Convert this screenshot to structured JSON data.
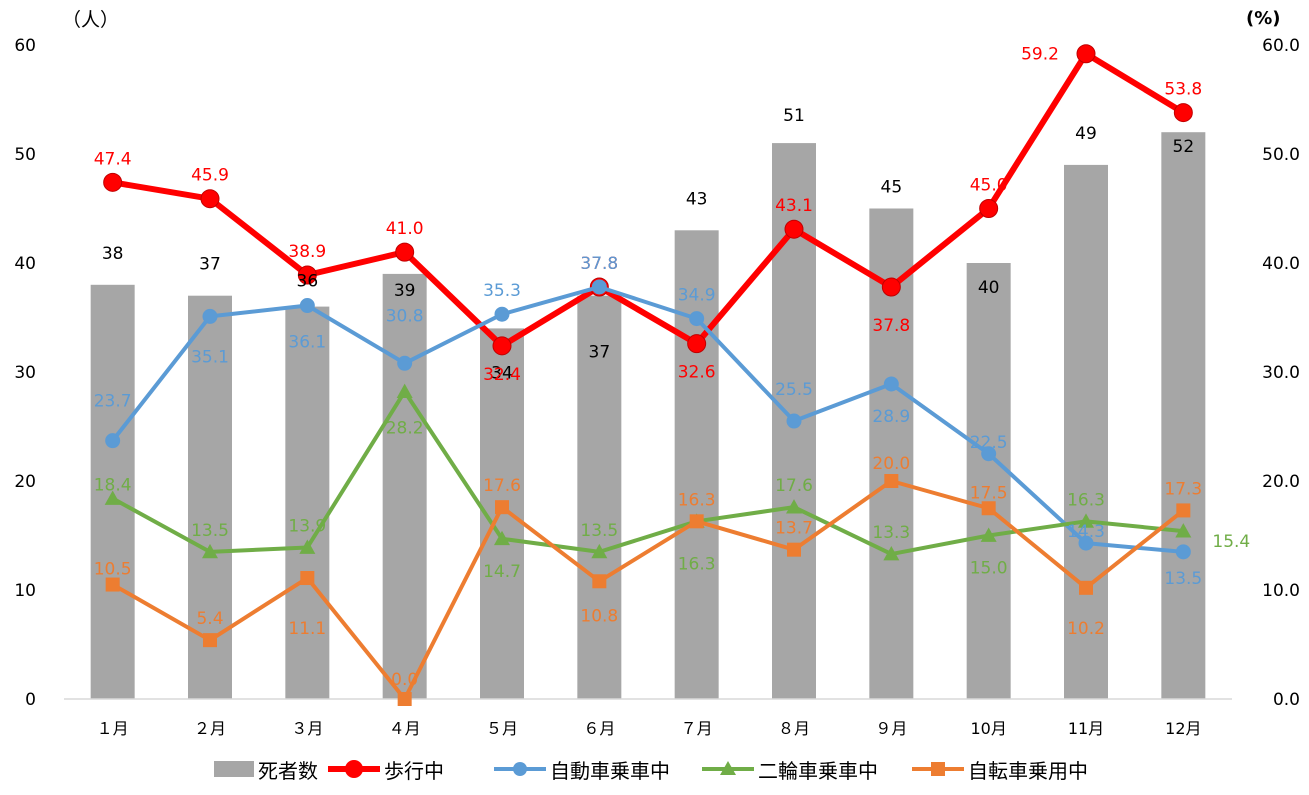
{
  "chart_data": {
    "type": "bar+line",
    "categories": [
      "１月",
      "２月",
      "３月",
      "４月",
      "５月",
      "６月",
      "７月",
      "８月",
      "９月",
      "10月",
      "11月",
      "12月"
    ],
    "left_axis": {
      "unit_label": "（人）",
      "min": 0,
      "max": 60,
      "ticks": [
        "0",
        "10",
        "20",
        "30",
        "40",
        "50",
        "60"
      ]
    },
    "right_axis": {
      "unit_label": "(%)",
      "min": 0,
      "max": 60,
      "ticks": [
        "0.0",
        "10.0",
        "20.0",
        "30.0",
        "40.0",
        "50.0",
        "60.0"
      ]
    },
    "bars": {
      "name": "死者数",
      "color": "#a6a6a6",
      "axis": "left",
      "values": [
        38,
        37,
        36,
        39,
        34,
        37,
        43,
        51,
        45,
        40,
        49,
        52
      ]
    },
    "series": [
      {
        "name": "歩行中",
        "color": "#ff0000",
        "marker": "circle",
        "axis": "right",
        "values": [
          47.4,
          45.9,
          38.9,
          41.0,
          32.4,
          37.8,
          32.6,
          43.1,
          37.8,
          45.0,
          59.2,
          53.8
        ]
      },
      {
        "name": "自動車乗車中",
        "color": "#5b9bd5",
        "marker": "circle",
        "axis": "right",
        "values": [
          23.7,
          35.1,
          36.1,
          30.8,
          35.3,
          37.8,
          34.9,
          25.5,
          28.9,
          22.5,
          14.3,
          13.5
        ]
      },
      {
        "name": "二輪車乗車中",
        "color": "#70ad47",
        "marker": "triangle",
        "axis": "right",
        "values": [
          18.4,
          13.5,
          13.9,
          28.2,
          14.7,
          13.5,
          16.3,
          17.6,
          13.3,
          15.0,
          16.3,
          15.4
        ]
      },
      {
        "name": "自転車乗用中",
        "color": "#ed7d31",
        "marker": "square",
        "axis": "right",
        "values": [
          10.5,
          5.4,
          11.1,
          0.0,
          17.6,
          10.8,
          16.3,
          13.7,
          20.0,
          17.5,
          10.2,
          17.3
        ]
      }
    ],
    "bar_labels": [
      "38",
      "37",
      "36",
      "39",
      "34",
      "37",
      "43",
      "51",
      "45",
      "40",
      "49",
      "52"
    ],
    "series_labels": [
      [
        "47.4",
        "45.9",
        "38.9",
        "41.0",
        "32.4",
        "37.8",
        "32.6",
        "43.1",
        "37.8",
        "45.0",
        "59.2",
        "53.8"
      ],
      [
        "23.7",
        "35.1",
        "36.1",
        "30.8",
        "35.3",
        "37.8",
        "34.9",
        "25.5",
        "28.9",
        "22.5",
        "14.3",
        "13.5"
      ],
      [
        "18.4",
        "13.5",
        "13.9",
        "28.2",
        "14.7",
        "13.5",
        "16.3",
        "17.6",
        "13.3",
        "15.0",
        "16.3",
        "15.4"
      ],
      [
        "10.5",
        "5.4",
        "11.1",
        "0.0",
        "17.6",
        "10.8",
        "16.3",
        "13.7",
        "20.0",
        "17.5",
        "10.2",
        "17.3"
      ]
    ],
    "grid": false,
    "legend": "bottom"
  }
}
